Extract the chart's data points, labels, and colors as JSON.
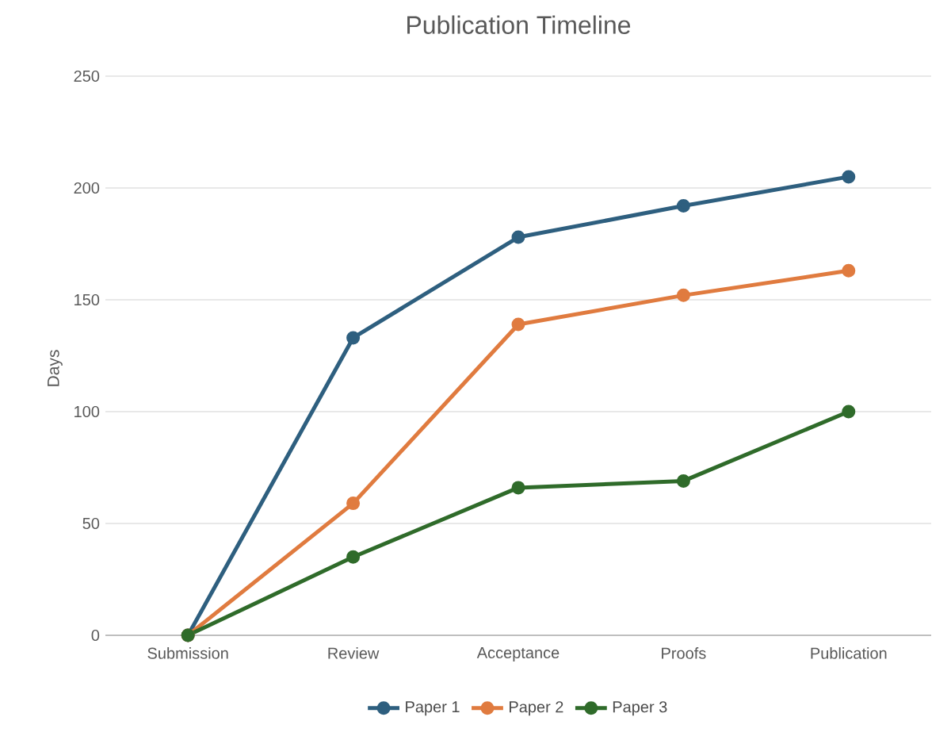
{
  "chart_data": {
    "type": "line",
    "title": "Publication Timeline",
    "ylabel": "Days",
    "categories": [
      "Submission",
      "Review",
      "Acceptance",
      "Proofs",
      "Publication"
    ],
    "series": [
      {
        "name": "Paper 1",
        "color": "#2e5f7f",
        "values": [
          0,
          133,
          178,
          192,
          205
        ]
      },
      {
        "name": "Paper 2",
        "color": "#e07b3f",
        "values": [
          0,
          59,
          139,
          152,
          163
        ]
      },
      {
        "name": "Paper 3",
        "color": "#2f6b2a",
        "values": [
          0,
          35,
          66,
          69,
          100
        ]
      }
    ],
    "ylim": [
      0,
      250
    ],
    "yticks": [
      0,
      50,
      100,
      150,
      200,
      250
    ],
    "grid": "y",
    "legend": "bottom",
    "marker": "circle",
    "line_style": "solid"
  }
}
